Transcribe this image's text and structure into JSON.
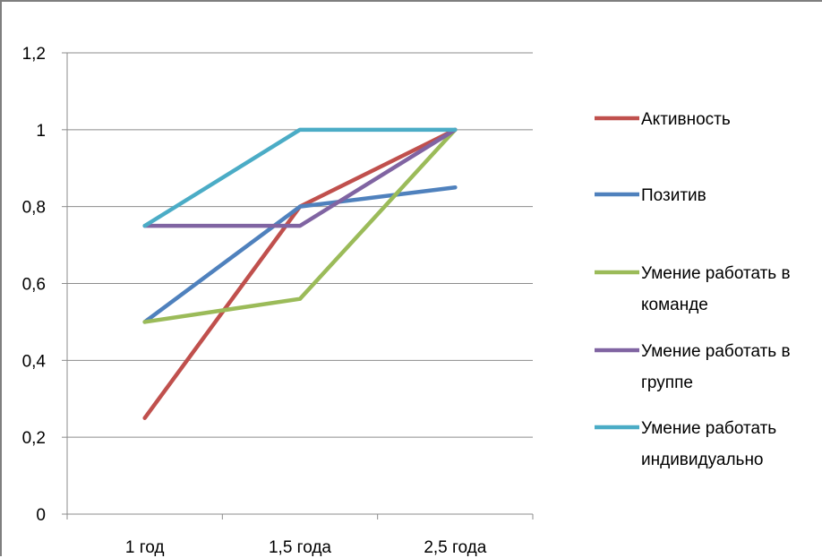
{
  "chart_data": {
    "type": "line",
    "categories": [
      "1 год",
      "1,5 года",
      "2,5 года"
    ],
    "ylim": [
      0,
      1.2
    ],
    "yticks": [
      "0",
      "0,2",
      "0,4",
      "0,6",
      "0,8",
      "1",
      "1,2"
    ],
    "grid": true,
    "legend_position": "right",
    "series": [
      {
        "name": "Активность",
        "values": [
          0.25,
          0.8,
          1.0
        ],
        "color": "#c0504d",
        "label_lines": [
          "Активность"
        ]
      },
      {
        "name": "Позитив",
        "values": [
          0.5,
          0.8,
          0.85
        ],
        "color": "#4f81bd",
        "label_lines": [
          "Позитив"
        ]
      },
      {
        "name": "Умение работать в команде",
        "values": [
          0.5,
          0.56,
          1.0
        ],
        "color": "#9bbb59",
        "label_lines": [
          "Умение работать в",
          "команде"
        ]
      },
      {
        "name": "Умение работать в группе",
        "values": [
          0.75,
          0.75,
          1.0
        ],
        "color": "#8064a2",
        "label_lines": [
          "Умение работать в",
          "группе"
        ]
      },
      {
        "name": "Умение работать индивидуально",
        "values": [
          0.75,
          1.0,
          1.0
        ],
        "color": "#4bacc6",
        "label_lines": [
          "Умение работать",
          "индивидуально"
        ]
      }
    ]
  }
}
